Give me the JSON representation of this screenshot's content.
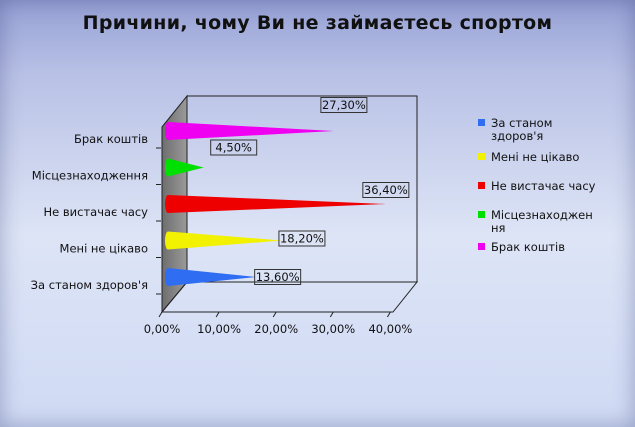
{
  "chart_data": {
    "type": "bar",
    "title": "Причини, чому Ви не займаєтесь спортом",
    "categories": [
      "За станом здоров'я",
      "Мені не цікаво",
      "Не вистачає  часу",
      "Місцезнаходження",
      "Брак коштів"
    ],
    "values": [
      13.6,
      18.2,
      36.4,
      4.5,
      27.3
    ],
    "value_labels": [
      "13,60%",
      "18,20%",
      "36,40%",
      "4,50%",
      "27,30%"
    ],
    "colors": [
      "#2f6df2",
      "#f2f200",
      "#ef0000",
      "#00e000",
      "#f000f0"
    ],
    "x_ticks": [
      "0,00%",
      "10,00%",
      "20,00%",
      "30,00%",
      "40,00%"
    ],
    "xlim": [
      0,
      40
    ],
    "legend": {
      "position": "right",
      "items": [
        {
          "lines": [
            "За станом",
            "здоров'я"
          ],
          "color": "#2f6df2"
        },
        {
          "lines": [
            "Мені не цікаво"
          ],
          "color": "#f2f200"
        },
        {
          "lines": [
            "Не вистачає  часу"
          ],
          "color": "#ef0000"
        },
        {
          "lines": [
            "Місцезнаходжен",
            "ня"
          ],
          "color": "#00e000"
        },
        {
          "lines": [
            "Брак коштів"
          ],
          "color": "#f000f0"
        }
      ]
    }
  }
}
